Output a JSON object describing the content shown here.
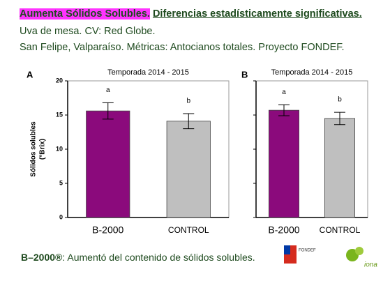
{
  "header": {
    "highlight": "Aumenta Sólidos Solubles.",
    "emphasis": "Diferencias estadísticamente significativas.",
    "line2": "Uva de mesa. CV: Red Globe.",
    "line3": "San Felipe, Valparaíso. Métricas: Antocianos totales. Proyecto FONDEF."
  },
  "chart_data": [
    {
      "type": "bar",
      "panel": "A",
      "title": "Temporada 2014 - 2015",
      "ylabel": [
        "Sólidos solubles",
        "(°Brix)"
      ],
      "categories": [
        "B-2000",
        "CONTROL"
      ],
      "values": [
        15.6,
        14.1
      ],
      "errors": [
        1.2,
        1.1
      ],
      "letters": [
        "a",
        "b"
      ],
      "colors": [
        "#8b0a7c",
        "#bfbfbf"
      ],
      "ylim": [
        0,
        20
      ],
      "yticks": [
        0,
        5,
        10,
        15,
        20
      ],
      "tick_labels": true
    },
    {
      "type": "bar",
      "panel": "B",
      "title": "Temporada 2014 - 2015",
      "categories": [
        "B-2000",
        "CONTROL"
      ],
      "values": [
        15.7,
        14.5
      ],
      "errors": [
        0.8,
        0.9
      ],
      "letters": [
        "a",
        "b"
      ],
      "colors": [
        "#8b0a7c",
        "#bfbfbf"
      ],
      "ylim": [
        0,
        20
      ],
      "yticks": [
        0,
        5,
        10,
        15,
        20
      ],
      "tick_labels": false
    }
  ],
  "footer": {
    "brand": "B–2000®",
    "text": ": Aumentó del contenido de sólidos solubles."
  },
  "logos": {
    "fondef": "FONDEF",
    "iona": "iona"
  }
}
